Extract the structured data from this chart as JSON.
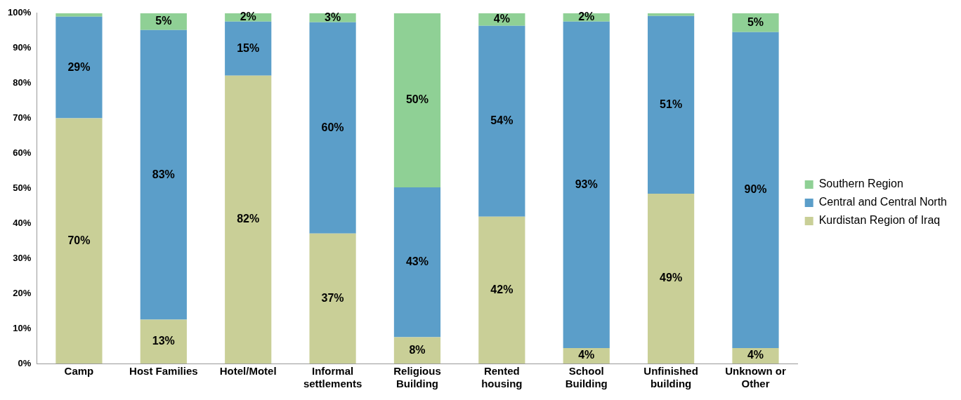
{
  "chart_data": {
    "type": "bar",
    "stacked": true,
    "categories": [
      "Camp",
      "Host Families",
      "Hotel/Motel",
      "Informal settlements",
      "Religious Building",
      "Rented housing",
      "School Building",
      "Unfinished building",
      "Unknown or Other"
    ],
    "series": [
      {
        "name": "Kurdistan Region of Iraq",
        "color": "#c9cf97",
        "values": [
          70,
          12.5,
          82.2,
          37.1,
          7.5,
          41.9,
          4.4,
          48.5,
          4.4
        ],
        "value_labels": [
          "70%",
          "13%",
          "82%",
          "37%",
          "8%",
          "42%",
          "4%",
          "49%",
          "4%"
        ]
      },
      {
        "name": "Central and Central North",
        "color": "#5b9ec9",
        "values": [
          29,
          82.7,
          15.4,
          60.3,
          42.8,
          54.5,
          93.2,
          50.7,
          90.2
        ],
        "value_labels": [
          "29%",
          "83%",
          "15%",
          "60%",
          "43%",
          "54%",
          "93%",
          "51%",
          "90%"
        ]
      },
      {
        "name": "Southern Region",
        "color": "#8fd095",
        "values": [
          1,
          4.8,
          2.4,
          2.6,
          49.7,
          3.6,
          2.4,
          0.8,
          5.4
        ],
        "value_labels": [
          null,
          "5%",
          "2%",
          "3%",
          "50%",
          "4%",
          "2%",
          null,
          "5%"
        ]
      }
    ],
    "ylim": [
      0,
      100
    ],
    "yticks": [
      {
        "value": 0,
        "label": "0%"
      },
      {
        "value": 10,
        "label": "10%"
      },
      {
        "value": 20,
        "label": "20%"
      },
      {
        "value": 30,
        "label": "30%"
      },
      {
        "value": 40,
        "label": "40%"
      },
      {
        "value": 50,
        "label": "50%"
      },
      {
        "value": 60,
        "label": "60%"
      },
      {
        "value": 70,
        "label": "70%"
      },
      {
        "value": 80,
        "label": "80%"
      },
      {
        "value": 90,
        "label": "90%"
      },
      {
        "value": 100,
        "label": "100%"
      }
    ],
    "grid": false,
    "legend": "right"
  }
}
